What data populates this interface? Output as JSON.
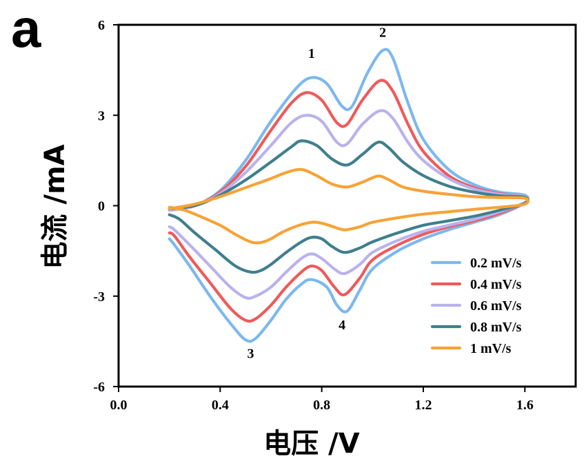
{
  "panel_label": "a",
  "chart_data": {
    "type": "line",
    "title": "",
    "xlabel": "电压 /V",
    "ylabel": "电流 /mA",
    "xlim": [
      0.0,
      1.8
    ],
    "ylim": [
      -6,
      6
    ],
    "x_ticks": [
      "0.0",
      "0.4",
      "0.8",
      "1.2",
      "1.6"
    ],
    "y_ticks": [
      "-6",
      "-3",
      "0",
      "3",
      "6"
    ],
    "grid": false,
    "legend_position": "bottom-right",
    "series": [
      {
        "name": "0.2 mV/s",
        "color": "#7cb8ee",
        "oxidation": [
          [
            0.2,
            -0.15
          ],
          [
            0.3,
            0.0
          ],
          [
            0.4,
            0.5
          ],
          [
            0.5,
            1.5
          ],
          [
            0.6,
            2.8
          ],
          [
            0.7,
            3.9
          ],
          [
            0.76,
            4.25
          ],
          [
            0.82,
            4.05
          ],
          [
            0.88,
            3.3
          ],
          [
            0.92,
            3.3
          ],
          [
            0.98,
            4.4
          ],
          [
            1.04,
            5.15
          ],
          [
            1.08,
            4.9
          ],
          [
            1.14,
            3.4
          ],
          [
            1.2,
            2.2
          ],
          [
            1.3,
            1.2
          ],
          [
            1.4,
            0.7
          ],
          [
            1.5,
            0.45
          ],
          [
            1.6,
            0.35
          ]
        ],
        "reduction": [
          [
            1.6,
            0.1
          ],
          [
            1.5,
            -0.3
          ],
          [
            1.4,
            -0.55
          ],
          [
            1.3,
            -0.8
          ],
          [
            1.2,
            -1.1
          ],
          [
            1.1,
            -1.5
          ],
          [
            1.0,
            -2.1
          ],
          [
            0.95,
            -2.8
          ],
          [
            0.9,
            -3.5
          ],
          [
            0.86,
            -3.3
          ],
          [
            0.82,
            -2.7
          ],
          [
            0.76,
            -2.45
          ],
          [
            0.72,
            -2.6
          ],
          [
            0.66,
            -3.1
          ],
          [
            0.6,
            -3.8
          ],
          [
            0.54,
            -4.4
          ],
          [
            0.5,
            -4.45
          ],
          [
            0.44,
            -3.9
          ],
          [
            0.36,
            -3.0
          ],
          [
            0.28,
            -2.0
          ],
          [
            0.22,
            -1.3
          ],
          [
            0.2,
            -1.1
          ]
        ]
      },
      {
        "name": "0.4 mV/s",
        "color": "#ef5a5a",
        "oxidation": [
          [
            0.2,
            -0.15
          ],
          [
            0.3,
            0.0
          ],
          [
            0.4,
            0.45
          ],
          [
            0.5,
            1.3
          ],
          [
            0.6,
            2.5
          ],
          [
            0.68,
            3.4
          ],
          [
            0.74,
            3.75
          ],
          [
            0.8,
            3.5
          ],
          [
            0.86,
            2.75
          ],
          [
            0.9,
            2.7
          ],
          [
            0.96,
            3.5
          ],
          [
            1.03,
            4.15
          ],
          [
            1.08,
            3.8
          ],
          [
            1.14,
            2.7
          ],
          [
            1.2,
            1.8
          ],
          [
            1.3,
            1.0
          ],
          [
            1.4,
            0.6
          ],
          [
            1.5,
            0.4
          ],
          [
            1.6,
            0.3
          ]
        ],
        "reduction": [
          [
            1.6,
            0.1
          ],
          [
            1.5,
            -0.25
          ],
          [
            1.4,
            -0.5
          ],
          [
            1.3,
            -0.7
          ],
          [
            1.2,
            -0.95
          ],
          [
            1.1,
            -1.3
          ],
          [
            1.0,
            -1.8
          ],
          [
            0.95,
            -2.4
          ],
          [
            0.89,
            -2.95
          ],
          [
            0.85,
            -2.7
          ],
          [
            0.8,
            -2.15
          ],
          [
            0.76,
            -2.0
          ],
          [
            0.72,
            -2.2
          ],
          [
            0.66,
            -2.7
          ],
          [
            0.6,
            -3.3
          ],
          [
            0.54,
            -3.75
          ],
          [
            0.5,
            -3.8
          ],
          [
            0.44,
            -3.4
          ],
          [
            0.36,
            -2.55
          ],
          [
            0.28,
            -1.7
          ],
          [
            0.22,
            -1.0
          ],
          [
            0.2,
            -0.9
          ]
        ]
      },
      {
        "name": "0.6 mV/s",
        "color": "#b9b2ee",
        "oxidation": [
          [
            0.2,
            -0.15
          ],
          [
            0.3,
            0.0
          ],
          [
            0.4,
            0.4
          ],
          [
            0.5,
            1.1
          ],
          [
            0.6,
            2.0
          ],
          [
            0.68,
            2.75
          ],
          [
            0.74,
            3.0
          ],
          [
            0.8,
            2.8
          ],
          [
            0.86,
            2.1
          ],
          [
            0.9,
            2.05
          ],
          [
            0.96,
            2.7
          ],
          [
            1.03,
            3.15
          ],
          [
            1.08,
            2.9
          ],
          [
            1.14,
            2.1
          ],
          [
            1.2,
            1.5
          ],
          [
            1.3,
            0.9
          ],
          [
            1.4,
            0.55
          ],
          [
            1.5,
            0.38
          ],
          [
            1.6,
            0.3
          ]
        ],
        "reduction": [
          [
            1.6,
            0.1
          ],
          [
            1.5,
            -0.2
          ],
          [
            1.4,
            -0.45
          ],
          [
            1.3,
            -0.65
          ],
          [
            1.2,
            -0.85
          ],
          [
            1.1,
            -1.15
          ],
          [
            1.0,
            -1.55
          ],
          [
            0.95,
            -1.95
          ],
          [
            0.89,
            -2.25
          ],
          [
            0.85,
            -2.1
          ],
          [
            0.8,
            -1.75
          ],
          [
            0.76,
            -1.6
          ],
          [
            0.72,
            -1.75
          ],
          [
            0.66,
            -2.2
          ],
          [
            0.6,
            -2.7
          ],
          [
            0.54,
            -3.0
          ],
          [
            0.5,
            -3.05
          ],
          [
            0.44,
            -2.7
          ],
          [
            0.36,
            -2.0
          ],
          [
            0.28,
            -1.3
          ],
          [
            0.22,
            -0.8
          ],
          [
            0.2,
            -0.7
          ]
        ]
      },
      {
        "name": "0.8 mV/s",
        "color": "#3f7f8c",
        "oxidation": [
          [
            0.2,
            -0.1
          ],
          [
            0.3,
            0.0
          ],
          [
            0.4,
            0.35
          ],
          [
            0.5,
            0.85
          ],
          [
            0.6,
            1.45
          ],
          [
            0.68,
            1.95
          ],
          [
            0.72,
            2.15
          ],
          [
            0.78,
            2.0
          ],
          [
            0.84,
            1.55
          ],
          [
            0.9,
            1.35
          ],
          [
            0.96,
            1.7
          ],
          [
            1.02,
            2.1
          ],
          [
            1.06,
            1.95
          ],
          [
            1.12,
            1.45
          ],
          [
            1.2,
            1.0
          ],
          [
            1.3,
            0.65
          ],
          [
            1.4,
            0.45
          ],
          [
            1.5,
            0.33
          ],
          [
            1.6,
            0.28
          ]
        ],
        "reduction": [
          [
            1.6,
            0.08
          ],
          [
            1.5,
            -0.15
          ],
          [
            1.4,
            -0.35
          ],
          [
            1.3,
            -0.5
          ],
          [
            1.2,
            -0.65
          ],
          [
            1.1,
            -0.9
          ],
          [
            1.0,
            -1.2
          ],
          [
            0.95,
            -1.4
          ],
          [
            0.89,
            -1.55
          ],
          [
            0.84,
            -1.35
          ],
          [
            0.8,
            -1.1
          ],
          [
            0.76,
            -1.05
          ],
          [
            0.72,
            -1.2
          ],
          [
            0.66,
            -1.55
          ],
          [
            0.6,
            -1.95
          ],
          [
            0.56,
            -2.15
          ],
          [
            0.52,
            -2.2
          ],
          [
            0.46,
            -2.0
          ],
          [
            0.38,
            -1.45
          ],
          [
            0.3,
            -0.9
          ],
          [
            0.24,
            -0.45
          ],
          [
            0.2,
            -0.3
          ]
        ]
      },
      {
        "name": "1 mV/s",
        "color": "#f7a336",
        "oxidation": [
          [
            0.2,
            -0.1
          ],
          [
            0.3,
            0.05
          ],
          [
            0.4,
            0.3
          ],
          [
            0.5,
            0.6
          ],
          [
            0.6,
            0.9
          ],
          [
            0.66,
            1.1
          ],
          [
            0.72,
            1.2
          ],
          [
            0.78,
            1.0
          ],
          [
            0.84,
            0.72
          ],
          [
            0.9,
            0.62
          ],
          [
            0.96,
            0.78
          ],
          [
            1.02,
            0.98
          ],
          [
            1.06,
            0.88
          ],
          [
            1.12,
            0.62
          ],
          [
            1.2,
            0.48
          ],
          [
            1.3,
            0.38
          ],
          [
            1.4,
            0.3
          ],
          [
            1.5,
            0.27
          ],
          [
            1.6,
            0.25
          ]
        ],
        "reduction": [
          [
            1.6,
            0.05
          ],
          [
            1.5,
            -0.05
          ],
          [
            1.4,
            -0.12
          ],
          [
            1.3,
            -0.2
          ],
          [
            1.2,
            -0.28
          ],
          [
            1.1,
            -0.4
          ],
          [
            1.0,
            -0.55
          ],
          [
            0.95,
            -0.7
          ],
          [
            0.89,
            -0.8
          ],
          [
            0.84,
            -0.68
          ],
          [
            0.8,
            -0.58
          ],
          [
            0.76,
            -0.55
          ],
          [
            0.7,
            -0.68
          ],
          [
            0.64,
            -0.9
          ],
          [
            0.6,
            -1.1
          ],
          [
            0.56,
            -1.22
          ],
          [
            0.52,
            -1.2
          ],
          [
            0.46,
            -0.95
          ],
          [
            0.4,
            -0.65
          ],
          [
            0.32,
            -0.35
          ],
          [
            0.26,
            -0.15
          ],
          [
            0.2,
            -0.05
          ]
        ]
      }
    ],
    "annotations": [
      {
        "text": "1",
        "x": 0.76,
        "y": 4.9
      },
      {
        "text": "2",
        "x": 1.04,
        "y": 5.6
      },
      {
        "text": "3",
        "x": 0.52,
        "y": -5.05
      },
      {
        "text": "4",
        "x": 0.88,
        "y": -4.1
      }
    ]
  }
}
